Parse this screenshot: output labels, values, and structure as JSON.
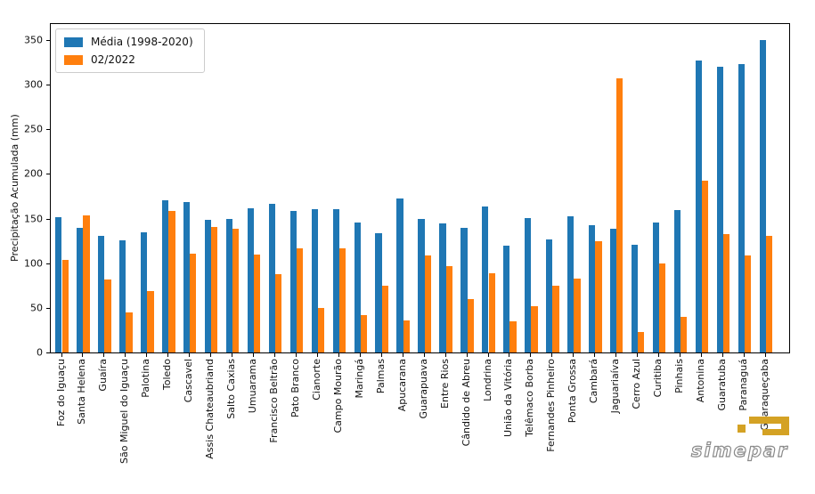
{
  "chart_data": {
    "type": "bar",
    "title": "",
    "xlabel": "",
    "ylabel": "Precipitação Acumulada (mm)",
    "ylim": [
      0,
      368
    ],
    "yticks": [
      0,
      50,
      100,
      150,
      200,
      250,
      300,
      350
    ],
    "grid": false,
    "legend_position": "upper-left",
    "categories": [
      "Foz do Iguaçu",
      "Santa Helena",
      "Guaíra",
      "São Miguel do Iguaçu",
      "Palotina",
      "Toledo",
      "Cascavel",
      "Assis Chateaubriand",
      "Salto Caxias",
      "Umuarama",
      "Francisco Beltrão",
      "Pato Branco",
      "Cianorte",
      "Campo Mourão",
      "Maringá",
      "Palmas",
      "Apucarana",
      "Guarapuava",
      "Entre Rios",
      "Cândido de Abreu",
      "Londrina",
      "União da Vitória",
      "Telêmaco Borba",
      "Fernandes Pinheiro",
      "Ponta Grossa",
      "Cambará",
      "Jaguariaíva",
      "Cerro Azul",
      "Curitiba",
      "Pinhais",
      "Antonina",
      "Guaratuba",
      "Paranaguá",
      "Guaraqueçaba"
    ],
    "series": [
      {
        "name": "Média (1998-2020)",
        "color": "#1f77b4",
        "values": [
          152,
          140,
          131,
          126,
          135,
          171,
          169,
          149,
          150,
          162,
          167,
          159,
          161,
          161,
          146,
          134,
          173,
          150,
          145,
          140,
          164,
          120,
          151,
          127,
          153,
          143,
          139,
          121,
          146,
          160,
          327,
          320,
          323,
          350
        ]
      },
      {
        "name": "02/2022",
        "color": "#ff7f0e",
        "values": [
          104,
          154,
          82,
          45,
          69,
          159,
          111,
          141,
          139,
          110,
          88,
          117,
          50,
          117,
          42,
          75,
          36,
          109,
          97,
          60,
          89,
          35,
          52,
          75,
          83,
          125,
          307,
          23,
          100,
          40,
          192,
          133,
          109,
          131
        ]
      }
    ]
  },
  "logo": {
    "text": "simepar",
    "text_color": "#8a8a8a",
    "glyph_color": "#d4a224"
  }
}
